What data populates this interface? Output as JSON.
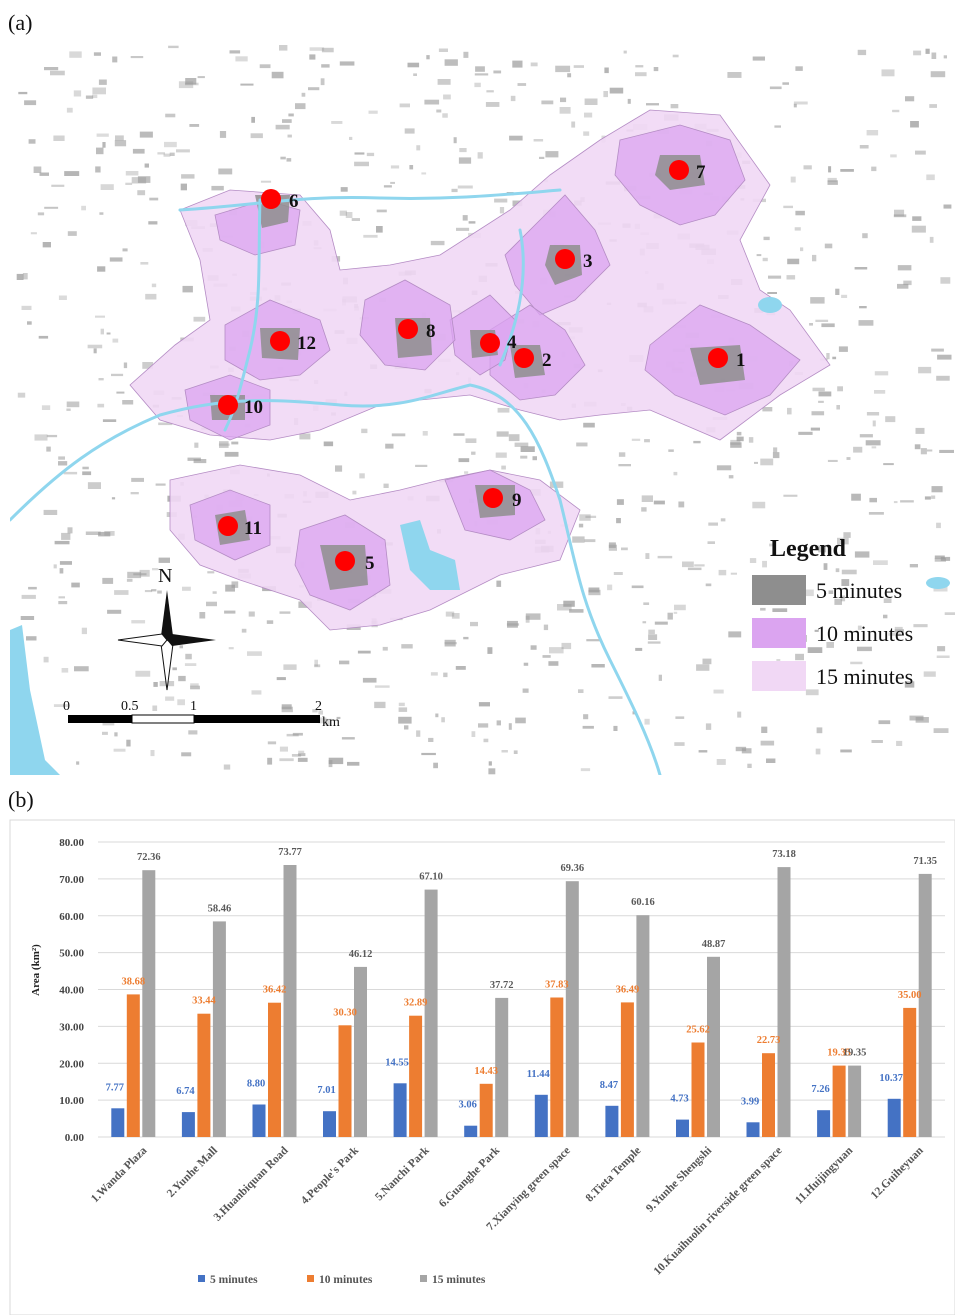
{
  "panel_a_label": "(a)",
  "panel_b_label": "(b)",
  "map": {
    "legend_title": "Legend",
    "legend_items": [
      {
        "label": "5 minutes",
        "color": "#8e8e8e"
      },
      {
        "label": "10 minutes",
        "color": "#dba4f0"
      },
      {
        "label": "15 minutes",
        "color": "#f1d8f5"
      }
    ],
    "north_label": "N",
    "scale_ticks": [
      "0",
      "0.5",
      "1",
      "2"
    ],
    "scale_unit": "km",
    "sites": [
      {
        "label": "1"
      },
      {
        "label": "2"
      },
      {
        "label": "3"
      },
      {
        "label": "4"
      },
      {
        "label": "5"
      },
      {
        "label": "6"
      },
      {
        "label": "7"
      },
      {
        "label": "8"
      },
      {
        "label": "9"
      },
      {
        "label": "10"
      },
      {
        "label": "11"
      },
      {
        "label": "12"
      }
    ],
    "colors": {
      "marker": "#ff0000",
      "river": "#8fd6ee",
      "building": "#9a9a9a"
    }
  },
  "chart_data": {
    "type": "bar",
    "ylabel": "Area (km²)",
    "ylim": [
      0,
      80
    ],
    "yticks": [
      "0.00",
      "10.00",
      "20.00",
      "30.00",
      "40.00",
      "50.00",
      "60.00",
      "70.00",
      "80.00"
    ],
    "categories": [
      "1.Wanda Plaza",
      "2.Yunhe Mall",
      "3.Huanbiquan Road",
      "4.People's Park",
      "5.Nanchi Park",
      "6.Guanghe Park",
      "7.Xianying green space",
      "8.Tieta Temple",
      "9.Yunhe Shengshi",
      "10.Kuaihuolin riverside green space",
      "11.Huijingyuan",
      "12.Guiheyuan"
    ],
    "series": [
      {
        "name": "5 minutes",
        "color": "#4472c4",
        "values": [
          7.77,
          6.74,
          8.8,
          7.01,
          14.55,
          3.06,
          11.44,
          8.47,
          4.73,
          3.99,
          7.26,
          10.37
        ],
        "labels": [
          "7.77",
          "6.74",
          "8.80",
          "7.01",
          "14.55",
          "3.06",
          "11.44",
          "8.47",
          "4.73",
          "3.99",
          "7.26",
          "10.37"
        ]
      },
      {
        "name": "10 minutes",
        "color": "#ed7d31",
        "values": [
          38.68,
          33.44,
          36.42,
          30.3,
          32.89,
          14.43,
          37.83,
          36.49,
          25.62,
          22.73,
          19.35,
          35.0
        ],
        "labels": [
          "38.68",
          "33.44",
          "36.42",
          "30.30",
          "32.89",
          "14.43",
          "37.83",
          "36.49",
          "25.62",
          "22.73",
          "19.35",
          "35.00"
        ]
      },
      {
        "name": "15 minutes",
        "color": "#a5a5a5",
        "values": [
          72.36,
          58.46,
          73.77,
          46.12,
          67.1,
          37.72,
          69.36,
          60.16,
          48.87,
          73.18,
          19.35,
          71.35
        ],
        "labels": [
          "72.36",
          "58.46",
          "73.77",
          "46.12",
          "67.10",
          "37.72",
          "69.36",
          "60.16",
          "48.87",
          "73.18",
          "19.35",
          "71.35"
        ]
      }
    ],
    "legend_position": "bottom",
    "grid": true
  }
}
